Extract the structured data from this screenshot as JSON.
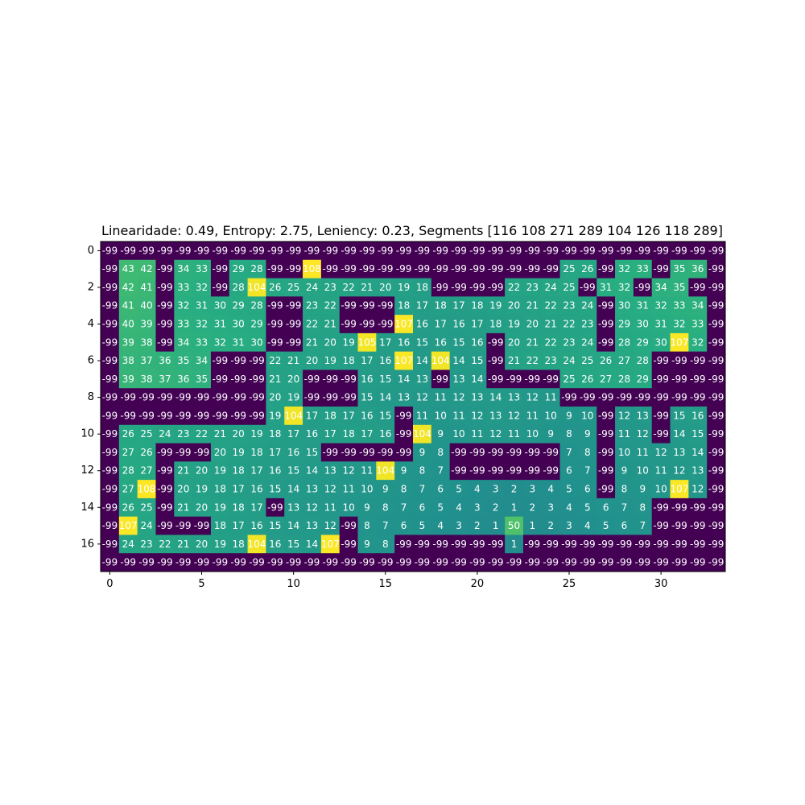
{
  "chart_data": {
    "type": "heatmap",
    "title": "Linearidade: 0.49, Entropy: 2.75, Leniency: 0.23, Segments [116 108 271 289 104 126 118 289]",
    "colormap": "viridis",
    "color_range": [
      -99,
      108
    ],
    "x_ticks": [
      0,
      5,
      10,
      15,
      20,
      25,
      30
    ],
    "y_ticks": [
      0,
      2,
      4,
      6,
      8,
      10,
      12,
      14,
      16
    ],
    "grid": false,
    "n_cols": 34,
    "n_rows": 18,
    "values": [
      [
        -99,
        -99,
        -99,
        -99,
        -99,
        -99,
        -99,
        -99,
        -99,
        -99,
        -99,
        -99,
        -99,
        -99,
        -99,
        -99,
        -99,
        -99,
        -99,
        -99,
        -99,
        -99,
        -99,
        -99,
        -99,
        -99,
        -99,
        -99,
        -99,
        -99,
        -99,
        -99,
        -99,
        -99
      ],
      [
        -99,
        43,
        42,
        -99,
        34,
        33,
        -99,
        29,
        28,
        -99,
        -99,
        108,
        -99,
        -99,
        -99,
        -99,
        -99,
        -99,
        -99,
        -99,
        -99,
        -99,
        -99,
        -99,
        -99,
        25,
        26,
        -99,
        32,
        33,
        -99,
        35,
        36,
        -99
      ],
      [
        -99,
        42,
        41,
        -99,
        33,
        32,
        -99,
        28,
        104,
        26,
        25,
        24,
        23,
        22,
        21,
        20,
        19,
        18,
        -99,
        -99,
        -99,
        -99,
        22,
        23,
        24,
        25,
        -99,
        31,
        32,
        -99,
        34,
        35,
        -99,
        -99
      ],
      [
        -99,
        41,
        40,
        -99,
        32,
        31,
        30,
        29,
        28,
        -99,
        -99,
        23,
        22,
        -99,
        -99,
        -99,
        18,
        17,
        18,
        17,
        18,
        19,
        20,
        21,
        22,
        23,
        24,
        -99,
        30,
        31,
        32,
        33,
        34,
        -99
      ],
      [
        -99,
        40,
        39,
        -99,
        33,
        32,
        31,
        30,
        29,
        -99,
        -99,
        22,
        21,
        -99,
        -99,
        -99,
        107,
        16,
        17,
        16,
        17,
        18,
        19,
        20,
        21,
        22,
        23,
        -99,
        29,
        30,
        31,
        32,
        33,
        -99
      ],
      [
        -99,
        39,
        38,
        -99,
        34,
        33,
        32,
        31,
        30,
        -99,
        -99,
        21,
        20,
        19,
        105,
        17,
        16,
        15,
        16,
        15,
        16,
        -99,
        20,
        21,
        22,
        23,
        24,
        -99,
        28,
        29,
        30,
        107,
        32,
        -99
      ],
      [
        -99,
        38,
        37,
        36,
        35,
        34,
        -99,
        -99,
        -99,
        22,
        21,
        20,
        19,
        18,
        17,
        16,
        107,
        14,
        104,
        14,
        15,
        -99,
        21,
        22,
        23,
        24,
        25,
        26,
        27,
        28,
        -99,
        -99,
        -99,
        -99
      ],
      [
        -99,
        39,
        38,
        37,
        36,
        35,
        -99,
        -99,
        -99,
        21,
        20,
        -99,
        -99,
        -99,
        16,
        15,
        14,
        13,
        -99,
        13,
        14,
        -99,
        -99,
        -99,
        -99,
        25,
        26,
        27,
        28,
        29,
        -99,
        -99,
        -99,
        -99
      ],
      [
        -99,
        -99,
        -99,
        -99,
        -99,
        -99,
        -99,
        -99,
        -99,
        20,
        19,
        -99,
        -99,
        -99,
        15,
        14,
        13,
        12,
        11,
        12,
        13,
        14,
        13,
        12,
        11,
        -99,
        -99,
        -99,
        -99,
        -99,
        -99,
        -99,
        -99,
        -99
      ],
      [
        -99,
        -99,
        -99,
        -99,
        -99,
        -99,
        -99,
        -99,
        -99,
        19,
        104,
        17,
        18,
        17,
        16,
        15,
        -99,
        11,
        10,
        11,
        12,
        13,
        12,
        11,
        10,
        9,
        10,
        -99,
        12,
        13,
        -99,
        15,
        16,
        -99
      ],
      [
        -99,
        26,
        25,
        24,
        23,
        22,
        21,
        20,
        19,
        18,
        17,
        16,
        17,
        18,
        17,
        16,
        -99,
        104,
        9,
        10,
        11,
        12,
        11,
        10,
        9,
        8,
        9,
        -99,
        11,
        12,
        -99,
        14,
        15,
        -99
      ],
      [
        -99,
        27,
        26,
        -99,
        -99,
        -99,
        20,
        19,
        18,
        17,
        16,
        15,
        -99,
        -99,
        -99,
        -99,
        -99,
        9,
        8,
        -99,
        -99,
        -99,
        -99,
        -99,
        -99,
        7,
        8,
        -99,
        10,
        11,
        12,
        13,
        14,
        -99
      ],
      [
        -99,
        28,
        27,
        -99,
        21,
        20,
        19,
        18,
        17,
        16,
        15,
        14,
        13,
        12,
        11,
        104,
        9,
        8,
        7,
        -99,
        -99,
        -99,
        -99,
        -99,
        -99,
        6,
        7,
        -99,
        9,
        10,
        11,
        12,
        13,
        -99
      ],
      [
        -99,
        27,
        108,
        -99,
        20,
        19,
        18,
        17,
        16,
        15,
        14,
        13,
        12,
        11,
        10,
        9,
        8,
        7,
        6,
        5,
        4,
        3,
        2,
        3,
        4,
        5,
        6,
        -99,
        8,
        9,
        10,
        107,
        12,
        -99
      ],
      [
        -99,
        26,
        25,
        -99,
        21,
        20,
        19,
        18,
        17,
        -99,
        13,
        12,
        11,
        10,
        9,
        8,
        7,
        6,
        5,
        4,
        3,
        2,
        1,
        2,
        3,
        4,
        5,
        6,
        7,
        8,
        -99,
        -99,
        -99,
        -99
      ],
      [
        -99,
        107,
        24,
        -99,
        -99,
        -99,
        18,
        17,
        16,
        15,
        14,
        13,
        12,
        -99,
        8,
        7,
        6,
        5,
        4,
        3,
        2,
        1,
        50,
        1,
        2,
        3,
        4,
        5,
        6,
        7,
        -99,
        -99,
        -99,
        -99
      ],
      [
        -99,
        24,
        23,
        22,
        21,
        20,
        19,
        18,
        104,
        16,
        15,
        14,
        107,
        -99,
        9,
        8,
        -99,
        -99,
        -99,
        -99,
        -99,
        -99,
        1,
        -99,
        -99,
        -99,
        -99,
        -99,
        -99,
        -99,
        -99,
        -99,
        -99,
        -99
      ],
      [
        -99,
        -99,
        -99,
        -99,
        -99,
        -99,
        -99,
        -99,
        -99,
        -99,
        -99,
        -99,
        -99,
        -99,
        -99,
        -99,
        -99,
        -99,
        -99,
        -99,
        -99,
        -99,
        -99,
        -99,
        -99,
        -99,
        -99,
        -99,
        -99,
        -99,
        -99,
        -99,
        -99,
        -99
      ]
    ]
  }
}
